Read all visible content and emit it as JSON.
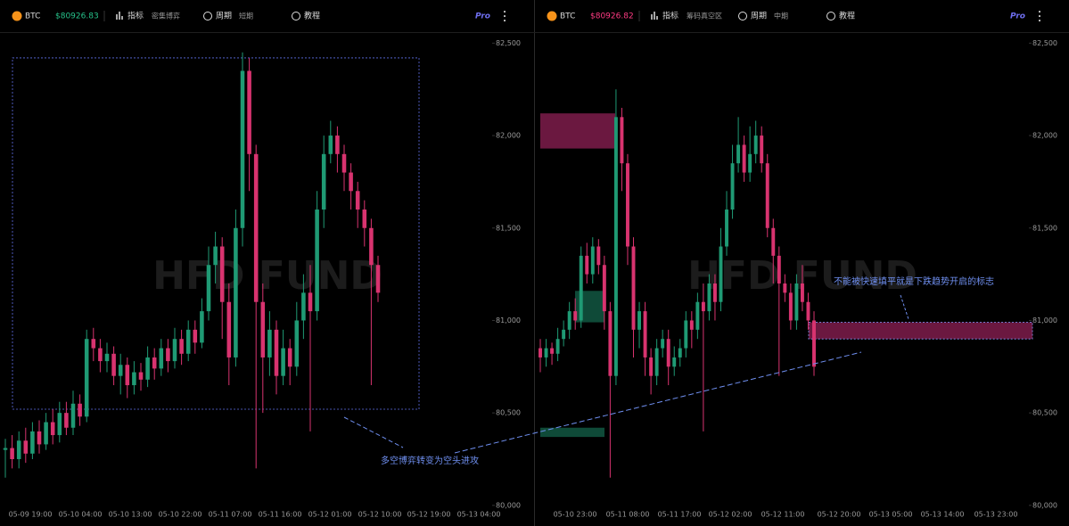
{
  "panels": [
    {
      "toolbar": {
        "symbol": "BTC",
        "price": "$80926.83",
        "indicator_label": "指标",
        "indicator_value": "密集博弈",
        "period_label": "周期",
        "period_value": "短期",
        "tutorial": "教程",
        "pro": "Pro"
      },
      "watermark": "HFD FUND",
      "annotation": "多空博弈转变为空头进攻",
      "xtick_labels": [
        "05-09 19:00",
        "05-10 04:00",
        "05-10 13:00",
        "05-10 22:00",
        "05-11 07:00",
        "05-11 16:00",
        "05-12 01:00",
        "05-12 10:00",
        "05-12 19:00",
        "05-13 04:00"
      ]
    },
    {
      "toolbar": {
        "symbol": "BTC",
        "price": "$80926.82",
        "indicator_label": "指标",
        "indicator_value": "筹码真空区",
        "period_label": "周期",
        "period_value": "中期",
        "tutorial": "教程",
        "pro": "Pro"
      },
      "watermark": "HFD FUND",
      "annotation": "不能被快速填平就是下跌趋势开启的标志",
      "xtick_labels": [
        "05-10 23:00",
        "05-11 08:00",
        "05-11 17:00",
        "05-12 02:00",
        "05-12 11:00",
        "05-12 20:00",
        "05-13 05:00",
        "05-13 14:00",
        "05-13 23:00"
      ]
    }
  ],
  "chart_data": [
    {
      "type": "candlestick",
      "up_color": "#1f9a74",
      "down_color": "#d8336f",
      "open": [
        80300,
        80310,
        80250,
        80350,
        80280,
        80400,
        80330,
        80450,
        80380,
        80500,
        80420,
        80550,
        80480,
        80900,
        80850,
        80780,
        80820,
        80700,
        80760,
        80650,
        80720,
        80680,
        80800,
        80740,
        80850,
        80780,
        80900,
        80820,
        80950,
        80880,
        81050,
        81300,
        81400,
        81100,
        80800,
        81500,
        82350,
        81900,
        81100,
        80800,
        80950,
        80700,
        80850,
        80750,
        81000,
        81150,
        81050,
        81600,
        81900,
        82000,
        81900,
        81800,
        81700,
        81600,
        81500,
        81300
      ],
      "high": [
        80360,
        80380,
        80400,
        80420,
        80450,
        80460,
        80500,
        80520,
        80560,
        80560,
        80620,
        80600,
        80950,
        80960,
        80900,
        80880,
        80860,
        80820,
        80800,
        80780,
        80770,
        80860,
        80850,
        80900,
        80900,
        80960,
        80950,
        81000,
        81000,
        81120,
        81400,
        81480,
        81450,
        81200,
        81600,
        82450,
        82420,
        81950,
        81200,
        81050,
        81000,
        80950,
        80900,
        81100,
        81250,
        81300,
        81700,
        82000,
        82080,
        82050,
        81950,
        81850,
        81750,
        81650,
        81550,
        81350
      ],
      "low": [
        80150,
        80200,
        80200,
        80230,
        80250,
        80280,
        80300,
        80330,
        80340,
        80380,
        80380,
        80430,
        80450,
        80780,
        80720,
        80720,
        80650,
        80600,
        80580,
        80600,
        80620,
        80640,
        80680,
        80700,
        80720,
        80740,
        80760,
        80780,
        80820,
        80850,
        81000,
        81200,
        80900,
        80650,
        80750,
        81400,
        81700,
        80200,
        80500,
        80700,
        80600,
        80650,
        80650,
        80700,
        80900,
        80400,
        81000,
        81500,
        81850,
        81800,
        81700,
        81600,
        81500,
        81400,
        80650,
        81100
      ],
      "close": [
        80310,
        80250,
        80350,
        80280,
        80400,
        80330,
        80450,
        80380,
        80500,
        80420,
        80550,
        80480,
        80900,
        80850,
        80780,
        80820,
        80700,
        80760,
        80650,
        80720,
        80680,
        80800,
        80740,
        80850,
        80780,
        80900,
        80820,
        80950,
        80880,
        81050,
        81300,
        81400,
        81100,
        80800,
        81500,
        82350,
        81900,
        81100,
        80800,
        80950,
        80700,
        80850,
        80750,
        81000,
        81150,
        81050,
        81600,
        81900,
        82000,
        81900,
        81800,
        81700,
        81600,
        81500,
        81300,
        81150
      ],
      "ylim": [
        79980,
        82550
      ],
      "yticks": [
        {
          "value": 80000,
          "label": "80,000"
        },
        {
          "value": 80500,
          "label": "80,500"
        },
        {
          "value": 81000,
          "label": "81,000"
        },
        {
          "value": 81500,
          "label": "81,500"
        },
        {
          "value": 82000,
          "label": "82,000"
        },
        {
          "value": 82500,
          "label": "82,500"
        }
      ],
      "box": {
        "low": 80520,
        "high": 82420,
        "color": "#5f6fe8"
      }
    },
    {
      "type": "candlestick",
      "up_color": "#1f9a74",
      "down_color": "#d8336f",
      "open": [
        80850,
        80800,
        80850,
        80820,
        80900,
        80950,
        81050,
        81000,
        81350,
        81250,
        81400,
        81300,
        81050,
        80700,
        82100,
        81850,
        81400,
        80950,
        81050,
        80800,
        80700,
        80850,
        80900,
        80750,
        80800,
        80850,
        81000,
        80950,
        81100,
        81050,
        81200,
        81100,
        81400,
        81600,
        81850,
        81950,
        81800,
        81900,
        82000,
        81850,
        81500,
        81350,
        81200,
        81150,
        81000,
        81200,
        81100,
        81000
      ],
      "high": [
        80900,
        80900,
        80880,
        80960,
        81000,
        81100,
        81120,
        81400,
        81420,
        81450,
        81440,
        81350,
        81100,
        82250,
        82150,
        81900,
        81450,
        81100,
        81100,
        80850,
        80900,
        80950,
        80950,
        80860,
        80900,
        81050,
        81050,
        81150,
        81200,
        81250,
        81250,
        81500,
        81700,
        81950,
        82100,
        82000,
        82050,
        82080,
        82050,
        81900,
        81550,
        81400,
        81250,
        81200,
        81250,
        81300,
        81150,
        81050
      ],
      "low": [
        80720,
        80750,
        80760,
        80780,
        80860,
        80900,
        80950,
        80960,
        81200,
        81200,
        81250,
        80950,
        80150,
        80650,
        81700,
        81300,
        80800,
        80850,
        80700,
        80600,
        80650,
        80800,
        80650,
        80700,
        80750,
        80800,
        80850,
        80900,
        80400,
        81000,
        81000,
        81050,
        81350,
        81550,
        81800,
        81750,
        81750,
        81850,
        81800,
        81450,
        81200,
        80700,
        81100,
        80950,
        80950,
        81050,
        80950,
        80700
      ],
      "close": [
        80800,
        80850,
        80820,
        80900,
        80950,
        81050,
        81000,
        81350,
        81250,
        81400,
        81300,
        81050,
        80700,
        82100,
        81850,
        81400,
        80950,
        81050,
        80800,
        80700,
        80850,
        80900,
        80750,
        80800,
        80850,
        81000,
        80950,
        81100,
        81050,
        81200,
        81100,
        81400,
        81600,
        81850,
        81950,
        81800,
        81900,
        82000,
        81850,
        81500,
        81350,
        81200,
        81150,
        81000,
        81200,
        81100,
        81000,
        80750
      ],
      "ylim": [
        79980,
        82550
      ],
      "yticks": [
        {
          "value": 80000,
          "label": "80,000"
        },
        {
          "value": 80500,
          "label": "80,500"
        },
        {
          "value": 81000,
          "label": "81,000"
        },
        {
          "value": 81500,
          "label": "81,500"
        },
        {
          "value": 82000,
          "label": "82,000"
        },
        {
          "value": 82500,
          "label": "82,500"
        }
      ],
      "zones": [
        {
          "low": 81930,
          "high": 82120,
          "color": "#6b1840"
        },
        {
          "low": 80990,
          "high": 81160,
          "color": "#0f4a38"
        },
        {
          "low": 80370,
          "high": 80420,
          "color": "#0f4a38"
        },
        {
          "low": 80900,
          "high": 80990,
          "color": "#6b1840"
        }
      ]
    }
  ]
}
